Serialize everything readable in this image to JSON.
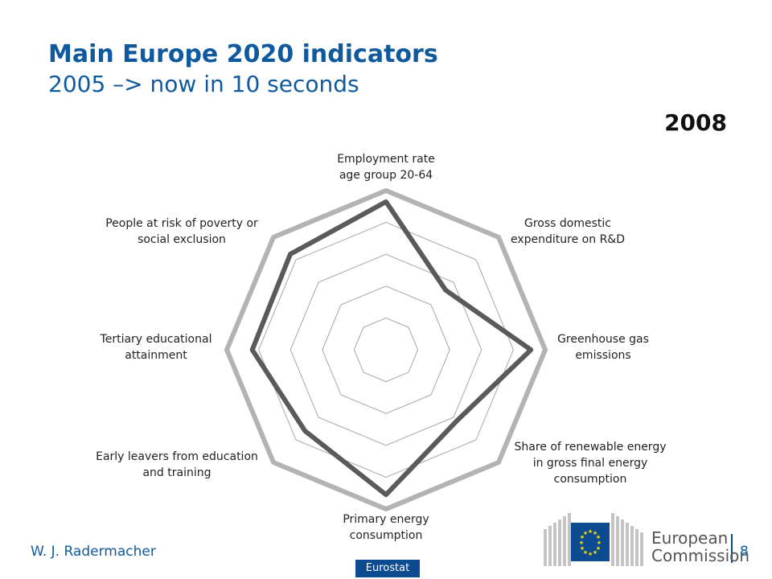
{
  "slide": {
    "title": "Main Europe 2020 indicators",
    "subtitle": "2005 –> now in 10 seconds",
    "year": "2008",
    "author": "W. J. Radermacher",
    "source_badge": "Eurostat",
    "page_number": "8",
    "logo_text": [
      "European",
      "Commission"
    ]
  },
  "chart_data": {
    "type": "radar",
    "title": "",
    "axes": [
      [
        "Employment rate",
        "age group 20-64"
      ],
      [
        "Gross domestic",
        "expenditure on R&D"
      ],
      [
        "Greenhouse gas",
        "emissions"
      ],
      [
        "Share of renewable energy",
        "in gross final energy",
        "consumption"
      ],
      [
        "Primary energy",
        "consumption"
      ],
      [
        "Early leavers from education",
        "and training"
      ],
      [
        "Tertiary educational",
        "attainment"
      ],
      [
        "People at risk of poverty or",
        "social exclusion"
      ]
    ],
    "rings": 5,
    "range": [
      0,
      1
    ],
    "series": [
      {
        "values": [
          1.0,
          1.0,
          1.0,
          1.0,
          1.0,
          1.0,
          1.0,
          1.0
        ],
        "color": "#b3b3b3"
      },
      {
        "values": [
          0.93,
          0.53,
          0.91,
          0.63,
          0.91,
          0.72,
          0.84,
          0.85
        ],
        "color": "#5a5a5a"
      }
    ],
    "grid_color": "#a6a6a6",
    "legend": "none"
  }
}
